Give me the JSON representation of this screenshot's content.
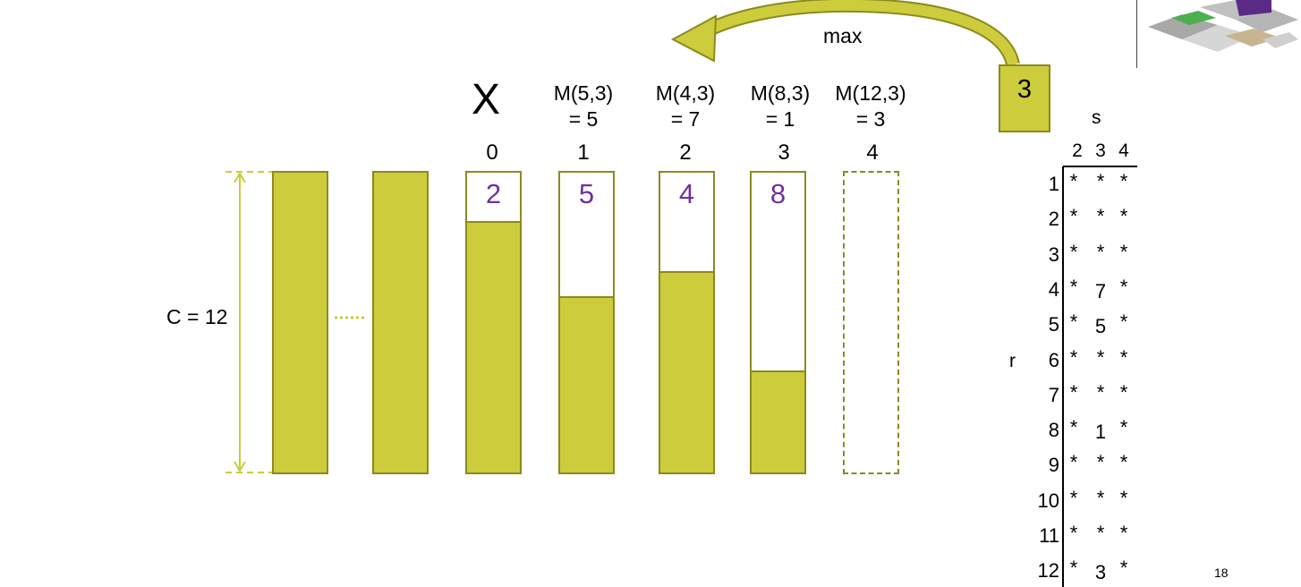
{
  "capacity_label": "C = 12",
  "x_label": "X",
  "max_label": "max",
  "result_value": "3",
  "page_number": "18",
  "bins": [
    {
      "index": "",
      "item": "",
      "fill": 1.0,
      "label_line1": "",
      "label_line2": ""
    },
    {
      "index": "",
      "item": "",
      "fill": 1.0,
      "label_line1": "",
      "label_line2": ""
    },
    {
      "index": "0",
      "item": "2",
      "fill": 0.8333,
      "label_line1": "",
      "label_line2": ""
    },
    {
      "index": "1",
      "item": "5",
      "fill": 0.5833,
      "label_line1": "M(5,3)",
      "label_line2": "= 5"
    },
    {
      "index": "2",
      "item": "4",
      "fill": 0.6667,
      "label_line1": "M(4,3)",
      "label_line2": "= 7"
    },
    {
      "index": "3",
      "item": "8",
      "fill": 0.3333,
      "label_line1": "M(8,3)",
      "label_line2": "= 1"
    },
    {
      "index": "4",
      "item": "",
      "fill": 0.0,
      "label_line1": "M(12,3)",
      "label_line2": "= 3"
    }
  ],
  "table": {
    "col_axis_label": "s",
    "row_axis_label": "r",
    "columns": [
      "2",
      "3",
      "4"
    ],
    "rows": [
      {
        "r": "1",
        "cells": [
          "*",
          "*",
          "*"
        ]
      },
      {
        "r": "2",
        "cells": [
          "*",
          "*",
          "*"
        ]
      },
      {
        "r": "3",
        "cells": [
          "*",
          "*",
          "*"
        ]
      },
      {
        "r": "4",
        "cells": [
          "*",
          "7",
          "*"
        ]
      },
      {
        "r": "5",
        "cells": [
          "*",
          "5",
          "*"
        ]
      },
      {
        "r": "6",
        "cells": [
          "*",
          "*",
          "*"
        ]
      },
      {
        "r": "7",
        "cells": [
          "*",
          "*",
          "*"
        ]
      },
      {
        "r": "8",
        "cells": [
          "*",
          "1",
          "*"
        ]
      },
      {
        "r": "9",
        "cells": [
          "*",
          "*",
          "*"
        ]
      },
      {
        "r": "10",
        "cells": [
          "*",
          "*",
          "*"
        ]
      },
      {
        "r": "11",
        "cells": [
          "*",
          "*",
          "*"
        ]
      },
      {
        "r": "12",
        "cells": [
          "*",
          "3",
          "*"
        ]
      }
    ]
  },
  "colors": {
    "fill": "#cccc3d",
    "border": "#8c8a1e",
    "item_text": "#7030a0",
    "guide": "#c8cc3a"
  }
}
